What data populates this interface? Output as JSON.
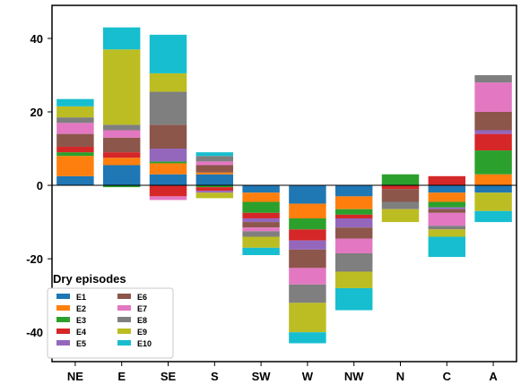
{
  "chart_data": {
    "type": "bar",
    "stacked": true,
    "diverging": true,
    "categories": [
      "NE",
      "E",
      "SE",
      "S",
      "SW",
      "W",
      "NW",
      "N",
      "C",
      "A"
    ],
    "ylim": [
      -48,
      49
    ],
    "yticks": [
      -40,
      -20,
      0,
      20,
      40
    ],
    "grid": false,
    "colors": {
      "E1": "#1f77b4",
      "E2": "#ff7f0e",
      "E3": "#2ca02c",
      "E4": "#d62728",
      "E5": "#9467bd",
      "E6": "#8c564b",
      "E7": "#e377c2",
      "E8": "#7f7f7f",
      "E9": "#bcbd22",
      "E10": "#17becf"
    },
    "legend": {
      "title": "Dry episodes",
      "placement": "bottom-left",
      "entries": [
        "E1",
        "E2",
        "E3",
        "E4",
        "E5",
        "E6",
        "E7",
        "E8",
        "E9",
        "E10"
      ]
    },
    "series": [
      {
        "name": "E1",
        "values": [
          2.5,
          5.5,
          3,
          3,
          -2,
          -5,
          -3,
          0,
          -2,
          -2
        ]
      },
      {
        "name": "E2",
        "values": [
          5.5,
          2,
          3,
          0.5,
          -2.5,
          -4,
          -3.5,
          0,
          -2.5,
          3
        ]
      },
      {
        "name": "E3",
        "values": [
          1,
          -0.5,
          0.5,
          -0.5,
          -3,
          -3,
          -1.5,
          3,
          -1.5,
          6.5
        ]
      },
      {
        "name": "E4",
        "values": [
          1.5,
          1.5,
          -3,
          -1,
          -1.5,
          -3,
          -1,
          -1,
          2.5,
          4.5
        ]
      },
      {
        "name": "E5",
        "values": [
          0,
          0,
          3.5,
          -0.5,
          -1,
          -2.5,
          -2.5,
          0,
          -0.5,
          1
        ]
      },
      {
        "name": "E6",
        "values": [
          3.5,
          4,
          6.5,
          2,
          -1.5,
          -5,
          -3,
          -3.5,
          -1,
          5
        ]
      },
      {
        "name": "E7",
        "values": [
          3,
          2,
          -1,
          1,
          -1,
          -4.5,
          -4,
          0,
          -3.5,
          8
        ]
      },
      {
        "name": "E8",
        "values": [
          1.5,
          1.5,
          9,
          1.5,
          -1.5,
          -5,
          -5,
          -2,
          -1,
          2
        ]
      },
      {
        "name": "E9",
        "values": [
          3,
          20.5,
          5,
          -1.5,
          -3,
          -8,
          -4.5,
          -3.5,
          -2,
          -5
        ]
      },
      {
        "name": "E10",
        "values": [
          2,
          6,
          10.5,
          1,
          -2,
          -3,
          -6,
          0,
          -5.5,
          -3
        ]
      }
    ]
  }
}
